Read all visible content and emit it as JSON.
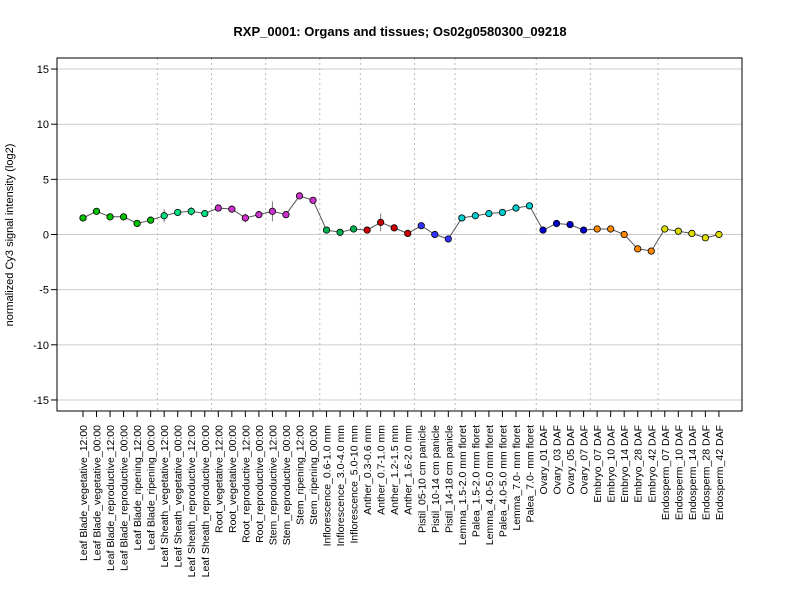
{
  "chart_data": {
    "type": "line",
    "title": "RXP_0001: Organs and tissues; Os02g0580300_09218",
    "ylabel": "normalized Cy3 signal intensity (log2)",
    "xlabel": "",
    "ylim": [
      -16,
      16
    ],
    "yticks": [
      -15,
      -10,
      -5,
      0,
      5,
      10,
      15
    ],
    "grid": true,
    "line_color": "#555555",
    "categories": [
      "Leaf Blade_vegetative_12:00",
      "Leaf Blade_vegetative_00:00",
      "Leaf Blade_reproductive_12:00",
      "Leaf Blade_reproductive_00:00",
      "Leaf Blade_ripening_12:00",
      "Leaf Blade_ripening_00:00",
      "Leaf Sheath_vegetative_12:00",
      "Leaf Sheath_vegetative_00:00",
      "Leaf Sheath_reproductive_12:00",
      "Leaf Sheath_reproductive_00:00",
      "Root_vegetative_12:00",
      "Root_vegetative_00:00",
      "Root_reproductive_12:00",
      "Root_reproductive_00:00",
      "Stem_reproductive_12:00",
      "Stem_reproductive_00:00",
      "Stem_ripening_12:00",
      "Stem_ripening_00:00",
      "Inflorescence_0.6-1.0 mm",
      "Inflorescence_3.0-4.0 mm",
      "Inflorescence_5.0-10 mm",
      "Anther_0.3-0.6 mm",
      "Anther_0.7-1.0 mm",
      "Anther_1.2-1.5 mm",
      "Anther_1.6-2.0 mm",
      "Pistil_05-10 cm panicle",
      "Pistil_10-14 cm panicle",
      "Pistil_14-18 cm panicle",
      "Lemma_1.5-2.0 mm floret",
      "Palea_1.5-2.0 mm floret",
      "Lemma_4.0-5.0 mm floret",
      "Palea_4.0-5.0 mm floret",
      "Lemma_7.0- mm floret",
      "Palea_7.0- mm floret",
      "Ovary_01 DAF",
      "Ovary_03 DAF",
      "Ovary_05 DAF",
      "Ovary_07 DAF",
      "Embryo_07 DAF",
      "Embryo_10 DAF",
      "Embryo_14 DAF",
      "Embryo_28 DAF",
      "Embryo_42 DAF",
      "Endosperm_07 DAF",
      "Endosperm_10 DAF",
      "Endosperm_14 DAF",
      "Endosperm_28 DAF",
      "Endosperm_42 DAF"
    ],
    "values": [
      1.5,
      2.1,
      1.6,
      1.6,
      1.0,
      1.3,
      1.7,
      2.0,
      2.1,
      1.9,
      2.4,
      2.3,
      1.5,
      1.8,
      2.1,
      1.8,
      3.5,
      3.1,
      0.4,
      0.2,
      0.5,
      0.4,
      1.1,
      0.6,
      0.1,
      0.8,
      0.0,
      -0.4,
      1.5,
      1.7,
      1.9,
      2.0,
      2.4,
      2.6,
      0.4,
      1.0,
      0.9,
      0.4,
      0.5,
      0.5,
      0.0,
      -1.3,
      -1.5,
      0.5,
      0.3,
      0.1,
      -0.3,
      0.0
    ],
    "errors": [
      0.1,
      0.15,
      0.2,
      0.15,
      0.15,
      0.15,
      0.6,
      0.2,
      0.4,
      0.15,
      0.1,
      0.1,
      0.4,
      0.1,
      0.9,
      0.2,
      0.1,
      0.1,
      0.1,
      0.1,
      0.1,
      0.1,
      0.8,
      0.15,
      0.1,
      0.15,
      0.15,
      0.3,
      0.15,
      0.15,
      0.1,
      0.1,
      0.15,
      0.3,
      0.1,
      0.1,
      0.1,
      0.1,
      0.1,
      0.1,
      0.1,
      0.1,
      0.1,
      0.1,
      0.1,
      0.1,
      0.1,
      0.1
    ],
    "colors": [
      "#00c000",
      "#00c000",
      "#00c000",
      "#00c000",
      "#00c000",
      "#00c000",
      "#00e080",
      "#00e080",
      "#00e080",
      "#00e080",
      "#cc33cc",
      "#cc33cc",
      "#cc33cc",
      "#cc33cc",
      "#cc33cc",
      "#cc33cc",
      "#cc33cc",
      "#cc33cc",
      "#00b050",
      "#00b050",
      "#00b050",
      "#cc0000",
      "#cc0000",
      "#cc0000",
      "#cc0000",
      "#3333ff",
      "#3333ff",
      "#3333ff",
      "#00cccc",
      "#00cccc",
      "#00cccc",
      "#00cccc",
      "#00cccc",
      "#00cccc",
      "#0000cc",
      "#0000cc",
      "#0000cc",
      "#0000cc",
      "#ff8800",
      "#ff8800",
      "#ff8800",
      "#ff8800",
      "#ff8800",
      "#dddd00",
      "#dddd00",
      "#dddd00",
      "#dddd00",
      "#dddd00"
    ],
    "group_separators_after_index": [
      5,
      9,
      13,
      17,
      20,
      24,
      27,
      33,
      37,
      42
    ]
  }
}
